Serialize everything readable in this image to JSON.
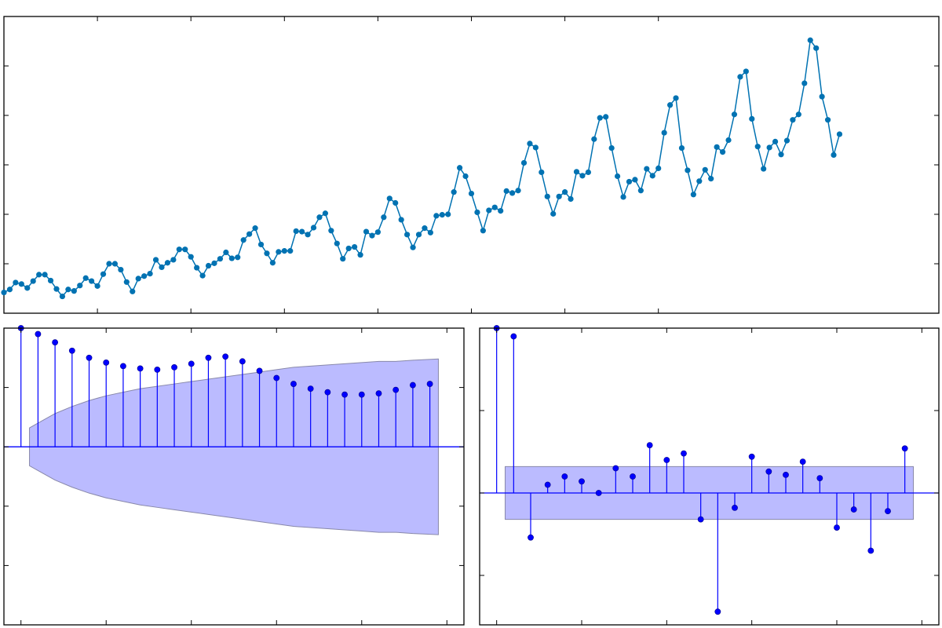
{
  "colors": {
    "series_line": "#0072b2",
    "stem": "#0000ff",
    "confidence_band": "#bbbbff",
    "axes": "#000000",
    "background": "#ffffff"
  },
  "chart_data": [
    {
      "type": "line",
      "title": "",
      "xlabel": "",
      "ylabel": "",
      "markers": "circle",
      "x_range": [
        0,
        160
      ],
      "y_range": [
        70,
        670
      ],
      "grid": false,
      "x_ticks": [
        16,
        32,
        48,
        64,
        80,
        96,
        112
      ],
      "y_ticks": [
        170,
        270,
        370,
        470,
        570
      ],
      "series": [
        {
          "values": [
            112,
            118,
            132,
            129,
            121,
            135,
            148,
            148,
            136,
            119,
            104,
            118,
            115,
            126,
            141,
            135,
            125,
            149,
            170,
            170,
            158,
            133,
            114,
            140,
            145,
            150,
            178,
            163,
            172,
            178,
            199,
            199,
            184,
            162,
            146,
            166,
            171,
            180,
            193,
            181,
            183,
            218,
            230,
            242,
            209,
            191,
            172,
            194,
            196,
            196,
            236,
            235,
            229,
            243,
            264,
            272,
            237,
            211,
            180,
            201,
            204,
            188,
            235,
            227,
            234,
            264,
            302,
            293,
            259,
            229,
            203,
            229,
            242,
            233,
            267,
            269,
            270,
            315,
            364,
            347,
            312,
            274,
            237,
            278,
            284,
            277,
            317,
            313,
            318,
            374,
            413,
            405,
            355,
            306,
            271,
            306,
            315,
            301,
            356,
            348,
            355,
            422,
            465,
            467,
            404,
            347,
            305,
            336,
            340,
            318,
            362,
            348,
            363,
            435,
            491,
            505,
            404,
            359,
            310,
            337,
            360,
            342,
            406,
            396,
            420,
            472,
            548,
            559,
            463,
            407,
            362,
            405,
            417,
            391,
            419,
            461,
            472,
            535,
            622,
            606,
            508,
            461,
            390,
            432
          ]
        }
      ]
    },
    {
      "type": "bar",
      "subtype": "stem",
      "title": "",
      "xlabel": "",
      "ylabel": "",
      "x_range": [
        -1,
        26
      ],
      "y_range": [
        -1.5,
        1.0
      ],
      "baseline": 0,
      "grid": false,
      "x_ticks": [
        0,
        5,
        10,
        15,
        20,
        25
      ],
      "y_ticks": [
        -1.0,
        -0.5,
        0.0,
        0.5,
        1.0
      ],
      "lags": [
        0,
        1,
        2,
        3,
        4,
        5,
        6,
        7,
        8,
        9,
        10,
        11,
        12,
        13,
        14,
        15,
        16,
        17,
        18,
        19,
        20,
        21,
        22,
        23,
        24
      ],
      "values": [
        1.0,
        0.95,
        0.88,
        0.81,
        0.75,
        0.71,
        0.68,
        0.66,
        0.65,
        0.67,
        0.7,
        0.75,
        0.76,
        0.72,
        0.64,
        0.58,
        0.53,
        0.49,
        0.46,
        0.44,
        0.44,
        0.45,
        0.48,
        0.52,
        0.53
      ],
      "confidence_band": {
        "lags": [
          0.5,
          1,
          2,
          3,
          4,
          5,
          6,
          7,
          8,
          9,
          10,
          11,
          12,
          13,
          14,
          15,
          16,
          17,
          18,
          19,
          20,
          21,
          22,
          23,
          24.5
        ],
        "upper": [
          0.16,
          0.2,
          0.28,
          0.34,
          0.39,
          0.43,
          0.46,
          0.49,
          0.51,
          0.53,
          0.55,
          0.57,
          0.59,
          0.61,
          0.63,
          0.65,
          0.67,
          0.68,
          0.69,
          0.7,
          0.71,
          0.72,
          0.72,
          0.73,
          0.74
        ]
      }
    },
    {
      "type": "bar",
      "subtype": "stem",
      "title": "",
      "xlabel": "",
      "ylabel": "",
      "x_range": [
        -1,
        26
      ],
      "y_range": [
        -0.8,
        1.0
      ],
      "baseline": 0,
      "grid": false,
      "x_ticks": [
        0,
        5,
        10,
        15,
        20,
        25
      ],
      "y_ticks": [
        -0.5,
        0.0,
        0.5,
        1.0
      ],
      "lags": [
        0,
        1,
        2,
        3,
        4,
        5,
        6,
        7,
        8,
        9,
        10,
        11,
        12,
        13,
        14,
        15,
        16,
        17,
        18,
        19,
        20,
        21,
        22,
        23,
        24
      ],
      "values": [
        1.0,
        0.95,
        -0.27,
        0.05,
        0.1,
        0.07,
        0.0,
        0.15,
        0.1,
        0.29,
        0.2,
        0.24,
        -0.16,
        -0.72,
        -0.09,
        0.22,
        0.13,
        0.11,
        0.19,
        0.09,
        -0.21,
        -0.1,
        -0.35,
        -0.11,
        0.27
      ],
      "confidence_band": {
        "lags": [
          0.5,
          24.5
        ],
        "upper": [
          0.16,
          0.16
        ]
      }
    }
  ]
}
